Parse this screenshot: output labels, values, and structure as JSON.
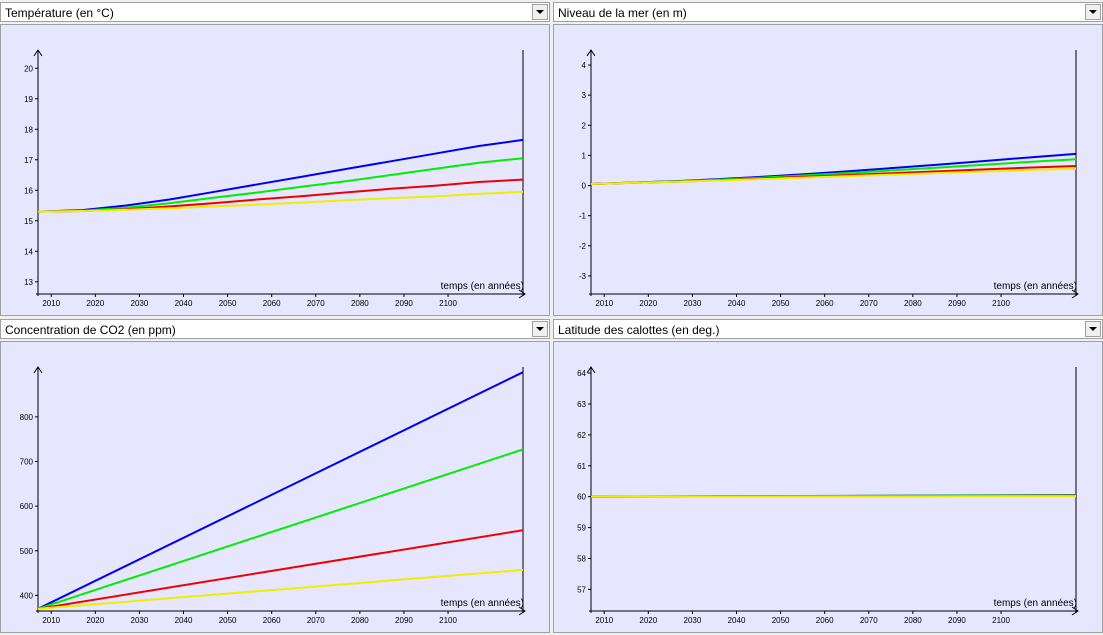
{
  "colors": {
    "scenario_1": "#0000ee",
    "scenario_2": "#00ee00",
    "scenario_3": "#ee0000",
    "scenario_4": "#eeee00"
  },
  "panels": [
    {
      "select_label": "Température (en °C)",
      "icon": "chevron-down-icon"
    },
    {
      "select_label": "Niveau de la mer (en m)",
      "icon": "chevron-down-icon"
    },
    {
      "select_label": "Concentration de CO2 (en ppm)",
      "icon": "chevron-down-icon"
    },
    {
      "select_label": "Latitude des calottes (en deg.)",
      "icon": "chevron-down-icon"
    }
  ],
  "chart_data": [
    {
      "type": "line",
      "xlabel": "temps (en années)",
      "xlim": [
        2007,
        2117
      ],
      "ylim": [
        12.6,
        20.5
      ],
      "x_ticks": [
        2010,
        2020,
        2030,
        2040,
        2050,
        2060,
        2070,
        2080,
        2090,
        2100
      ],
      "y_ticks": [
        13,
        14,
        15,
        16,
        17,
        18,
        19,
        20
      ],
      "x": [
        2007,
        2017,
        2027,
        2037,
        2047,
        2057,
        2067,
        2077,
        2087,
        2097,
        2107,
        2117
      ],
      "series": [
        {
          "values": [
            15.3,
            15.35,
            15.5,
            15.7,
            15.95,
            16.2,
            16.45,
            16.7,
            16.95,
            17.2,
            17.45,
            17.65
          ]
        },
        {
          "values": [
            15.3,
            15.33,
            15.43,
            15.58,
            15.76,
            15.93,
            16.12,
            16.3,
            16.5,
            16.7,
            16.9,
            17.05
          ]
        },
        {
          "values": [
            15.3,
            15.32,
            15.38,
            15.47,
            15.58,
            15.7,
            15.81,
            15.93,
            16.05,
            16.15,
            16.27,
            16.35
          ]
        },
        {
          "values": [
            15.3,
            15.32,
            15.36,
            15.41,
            15.47,
            15.53,
            15.6,
            15.67,
            15.74,
            15.8,
            15.88,
            15.95
          ]
        }
      ]
    },
    {
      "type": "line",
      "xlabel": "temps (en années)",
      "xlim": [
        2007,
        2117
      ],
      "ylim": [
        -3.6,
        4.4
      ],
      "x_ticks": [
        2010,
        2020,
        2030,
        2040,
        2050,
        2060,
        2070,
        2080,
        2090,
        2100
      ],
      "y_ticks": [
        -3,
        -2,
        -1,
        0,
        1,
        2,
        3,
        4
      ],
      "x": [
        2007,
        2017,
        2027,
        2037,
        2047,
        2057,
        2067,
        2077,
        2087,
        2097,
        2107,
        2117
      ],
      "series": [
        {
          "values": [
            0.05,
            0.1,
            0.15,
            0.22,
            0.3,
            0.39,
            0.49,
            0.6,
            0.71,
            0.82,
            0.94,
            1.05
          ]
        },
        {
          "values": [
            0.05,
            0.1,
            0.14,
            0.2,
            0.27,
            0.35,
            0.43,
            0.52,
            0.61,
            0.7,
            0.79,
            0.87
          ]
        },
        {
          "values": [
            0.05,
            0.09,
            0.13,
            0.18,
            0.24,
            0.3,
            0.36,
            0.42,
            0.48,
            0.54,
            0.6,
            0.65
          ]
        },
        {
          "values": [
            0.05,
            0.09,
            0.13,
            0.17,
            0.22,
            0.27,
            0.32,
            0.37,
            0.42,
            0.47,
            0.52,
            0.56
          ]
        }
      ]
    },
    {
      "type": "line",
      "xlabel": "temps (en années)",
      "xlim": [
        2007,
        2117
      ],
      "ylim": [
        365,
        905
      ],
      "x_ticks": [
        2010,
        2020,
        2030,
        2040,
        2050,
        2060,
        2070,
        2080,
        2090,
        2100
      ],
      "y_ticks": [
        400,
        500,
        600,
        700,
        800
      ],
      "x": [
        2007,
        2117
      ],
      "series": [
        {
          "values": [
            370,
            900
          ]
        },
        {
          "values": [
            370,
            727
          ]
        },
        {
          "values": [
            370,
            546
          ]
        },
        {
          "values": [
            370,
            457
          ]
        }
      ]
    },
    {
      "type": "line",
      "xlabel": "temps (en années)",
      "xlim": [
        2007,
        2117
      ],
      "ylim": [
        56.3,
        64.1
      ],
      "x_ticks": [
        2010,
        2020,
        2030,
        2040,
        2050,
        2060,
        2070,
        2080,
        2090,
        2100
      ],
      "y_ticks": [
        57,
        58,
        59,
        60,
        61,
        62,
        63,
        64
      ],
      "x": [
        2007,
        2117
      ],
      "series": [
        {
          "values": [
            60.0,
            60.05
          ]
        },
        {
          "values": [
            60.0,
            60.04
          ]
        },
        {
          "values": [
            60.0,
            60.03
          ]
        },
        {
          "values": [
            60.0,
            60.02
          ]
        }
      ]
    }
  ]
}
